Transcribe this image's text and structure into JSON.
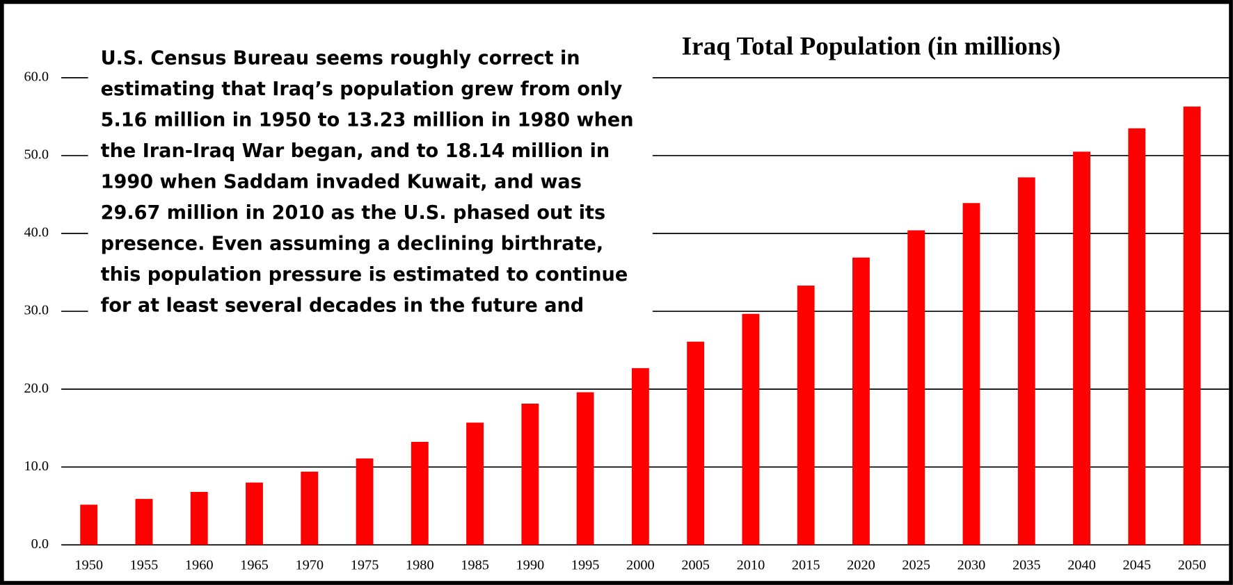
{
  "chart_data": {
    "type": "bar",
    "title": "Iraq Total Population (in millions)",
    "annotation": [
      "U.S. Census Bureau seems roughly correct in",
      "estimating that Iraq’s population grew from only",
      "5.16 million in 1950 to 13.23 million in 1980 when",
      "the Iran-Iraq War began, and to 18.14 million in",
      "1990 when Saddam invaded Kuwait, and was",
      "29.67 million in 2010 as the U.S. phased out its",
      "presence. Even assuming a declining birthrate,",
      "this population pressure is estimated to continue",
      "for at least several decades in the future and"
    ],
    "categories": [
      "1950",
      "1955",
      "1960",
      "1965",
      "1970",
      "1975",
      "1980",
      "1985",
      "1990",
      "1995",
      "2000",
      "2005",
      "2010",
      "2015",
      "2020",
      "2025",
      "2030",
      "2035",
      "2040",
      "2045",
      "2050"
    ],
    "values": [
      5.16,
      5.9,
      6.8,
      8.0,
      9.4,
      11.1,
      13.23,
      15.7,
      18.14,
      19.6,
      22.7,
      26.1,
      29.67,
      33.3,
      36.9,
      40.4,
      43.9,
      47.2,
      50.5,
      53.5,
      56.3
    ],
    "color": "#ff0000",
    "ylim": [
      0,
      60
    ],
    "yticks": [
      {
        "value": 0,
        "label": "0.0"
      },
      {
        "value": 10,
        "label": "10.0"
      },
      {
        "value": 20,
        "label": "20.0"
      },
      {
        "value": 30,
        "label": "30.0"
      },
      {
        "value": 40,
        "label": "40.0"
      },
      {
        "value": 50,
        "label": "50.0"
      },
      {
        "value": 60,
        "label": "60.0"
      }
    ],
    "grid": true
  }
}
